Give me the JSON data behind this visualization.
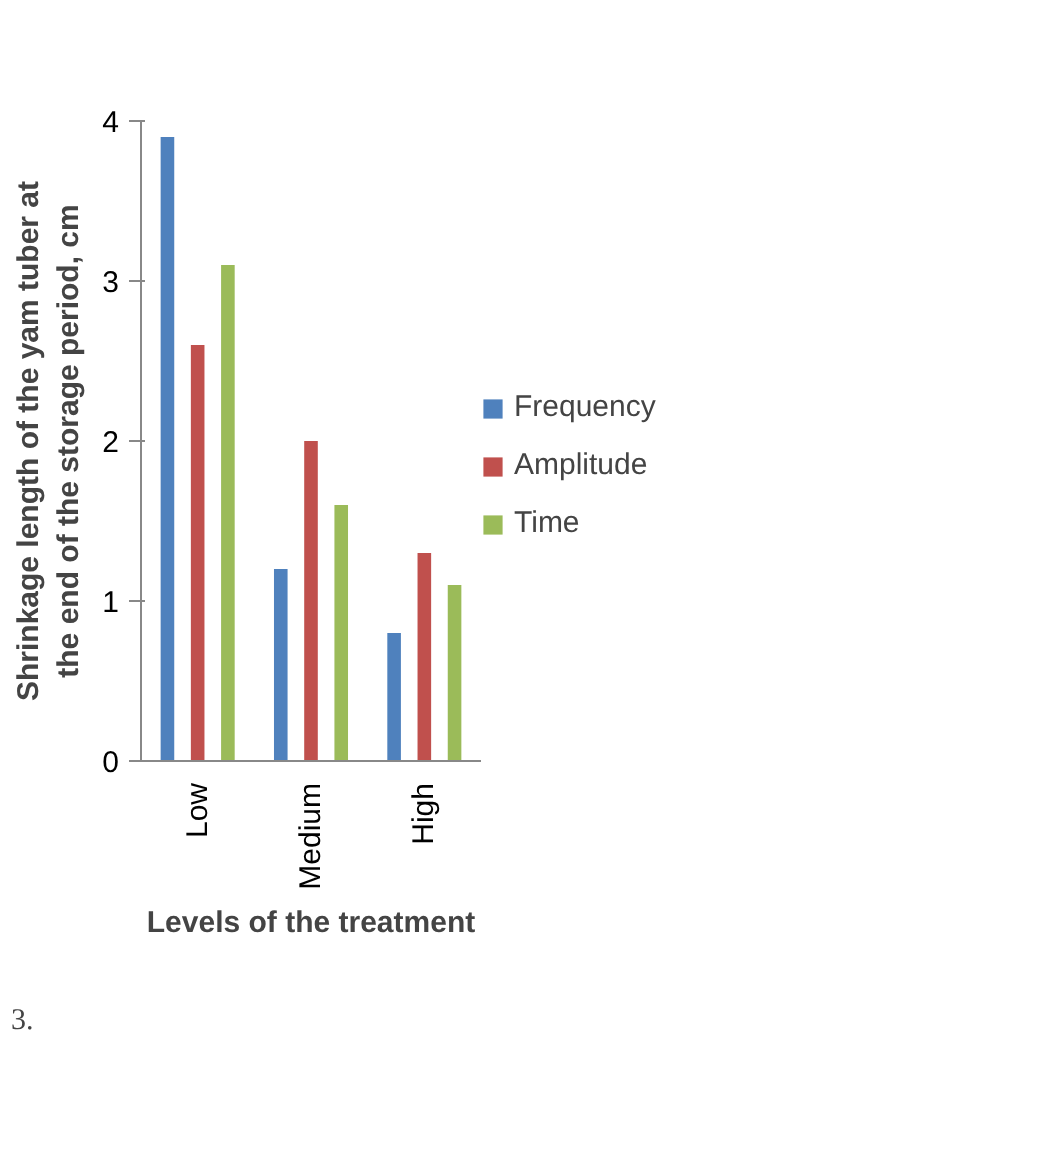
{
  "chart_data": {
    "type": "bar",
    "xlabel": "Levels of the treatment",
    "ylabel": "Shrinkage length of the yam tuber at\nthe end of the storage period, cm",
    "categories": [
      "Low",
      "Medium",
      "High"
    ],
    "series": [
      {
        "name": "Frequency",
        "color": "#4f81bd",
        "values": [
          3.9,
          1.2,
          0.8
        ]
      },
      {
        "name": "Amplitude",
        "color": "#c0504d",
        "values": [
          2.6,
          2.0,
          1.3
        ]
      },
      {
        "name": "Time",
        "color": "#9bbb59",
        "values": [
          3.1,
          1.6,
          1.1
        ]
      }
    ],
    "ylim": [
      0,
      4
    ],
    "yticks": [
      0,
      1,
      2,
      3,
      4
    ],
    "grid": false,
    "legend": "right",
    "annotations": [
      "3."
    ]
  }
}
